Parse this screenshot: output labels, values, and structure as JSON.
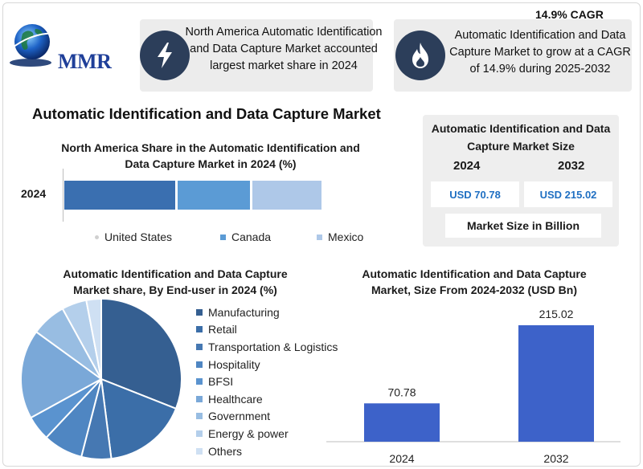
{
  "logo": {
    "text": "MMR"
  },
  "highlights": [
    {
      "icon": "lightning-icon",
      "text": "North America Automatic Identification and Data Capture Market accounted largest market share in 2024"
    },
    {
      "icon": "flame-icon",
      "label": "14.9% CAGR",
      "text": "Automatic Identification and Data Capture Market to grow at a CAGR of 14.9% during 2025-2032"
    }
  ],
  "main_title": "Automatic Identification and Data Capture Market",
  "market_size_box": {
    "title": "Automatic Identification and Data Capture Market Size",
    "year_a": "2024",
    "year_b": "2032",
    "value_a": "USD 70.78",
    "value_b": "USD 215.02",
    "unit": "Market Size in Billion"
  },
  "colors": {
    "united_states": "#3a6fb0",
    "canada": "#5b9bd5",
    "mexico": "#aec8e8",
    "column": "#3d62c9",
    "icon_bg": "#2c3e5a"
  },
  "chart_data": [
    {
      "type": "bar",
      "orientation": "horizontal-stacked",
      "title": "North America Share in the Automatic Identification and Data Capture Market in 2024 (%)",
      "categories": [
        "2024"
      ],
      "series": [
        {
          "name": "United States",
          "values": [
            44
          ]
        },
        {
          "name": "Canada",
          "values": [
            29
          ]
        },
        {
          "name": "Mexico",
          "values": [
            27
          ]
        }
      ],
      "legend": "bottom"
    },
    {
      "type": "pie",
      "title": "Automatic Identification and Data Capture Market share, By End-user in 2024  (%)",
      "labels": [
        "Manufacturing",
        "Retail",
        "Transportation & Logistics",
        "Hospitality",
        "BFSI",
        "Healthcare",
        "Government",
        "Energy & power",
        "Others"
      ],
      "values": [
        31,
        17,
        6,
        8,
        5,
        18,
        7,
        5,
        3
      ],
      "colors": [
        "#355f91",
        "#3b6ea8",
        "#4678b2",
        "#4f86c2",
        "#5a93cf",
        "#7aa8d8",
        "#98bde2",
        "#b4cfeb",
        "#cfe0f3"
      ],
      "legend": "right"
    },
    {
      "type": "bar",
      "title": "Automatic Identification and Data Capture Market, Size From 2024-2032 (USD Bn)",
      "categories": [
        "2024",
        "2032"
      ],
      "values": [
        70.78,
        215.02
      ],
      "data_labels": [
        "70.78",
        "215.02"
      ]
    }
  ]
}
